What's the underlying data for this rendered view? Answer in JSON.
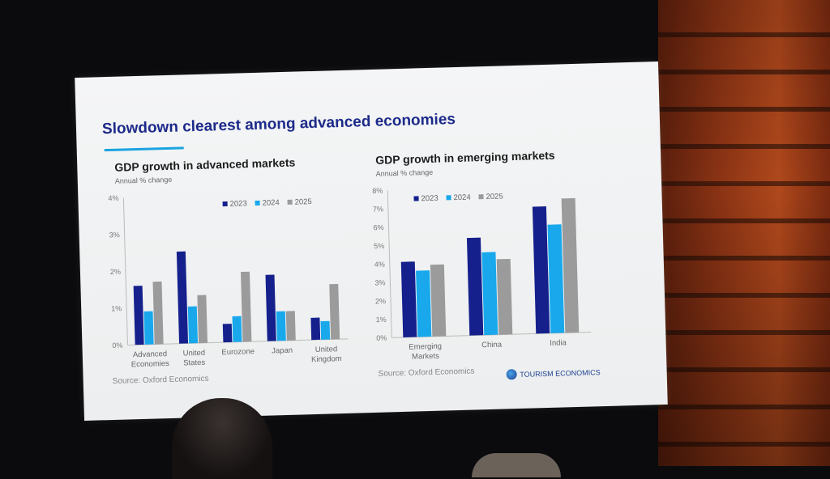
{
  "slide": {
    "title": "Slowdown clearest among advanced economies",
    "logo_text": "TOURISM ECONOMICS"
  },
  "colors": {
    "2023": "#15208c",
    "2024": "#19a8ec",
    "2025": "#9b9b9b",
    "title": "#1c2a8a",
    "rule": "#1aa3e0"
  },
  "chart_data": [
    {
      "type": "bar",
      "title": "GDP growth in advanced markets",
      "subtitle": "Annual % change",
      "source": "Source: Oxford Economics",
      "categories": [
        [
          "Advanced",
          "Economies"
        ],
        [
          "United",
          "States"
        ],
        [
          "Eurozone"
        ],
        [
          "Japan"
        ],
        [
          "United",
          "Kingdom"
        ]
      ],
      "series": [
        {
          "name": "2023",
          "values": [
            1.6,
            2.5,
            0.5,
            1.8,
            0.6
          ]
        },
        {
          "name": "2024",
          "values": [
            0.9,
            1.0,
            0.7,
            0.8,
            0.5
          ]
        },
        {
          "name": "2025",
          "values": [
            1.7,
            1.3,
            1.9,
            0.8,
            1.5
          ]
        }
      ],
      "ylim": [
        0,
        4
      ],
      "yticks": [
        "0%",
        "1%",
        "2%",
        "3%",
        "4%"
      ],
      "legend_position": "top-right"
    },
    {
      "type": "bar",
      "title": "GDP growth in emerging markets",
      "subtitle": "Annual % change",
      "source": "Source: Oxford Economics",
      "categories": [
        [
          "Emerging",
          "Markets"
        ],
        [
          "China"
        ],
        [
          "India"
        ]
      ],
      "series": [
        {
          "name": "2023",
          "values": [
            4.1,
            5.3,
            6.9
          ]
        },
        {
          "name": "2024",
          "values": [
            3.6,
            4.5,
            5.9
          ]
        },
        {
          "name": "2025",
          "values": [
            3.9,
            4.1,
            7.3
          ]
        }
      ],
      "ylim": [
        0,
        8
      ],
      "yticks": [
        "0%",
        "1%",
        "2%",
        "3%",
        "4%",
        "5%",
        "6%",
        "7%",
        "8%"
      ],
      "legend_position": "top-right"
    }
  ]
}
